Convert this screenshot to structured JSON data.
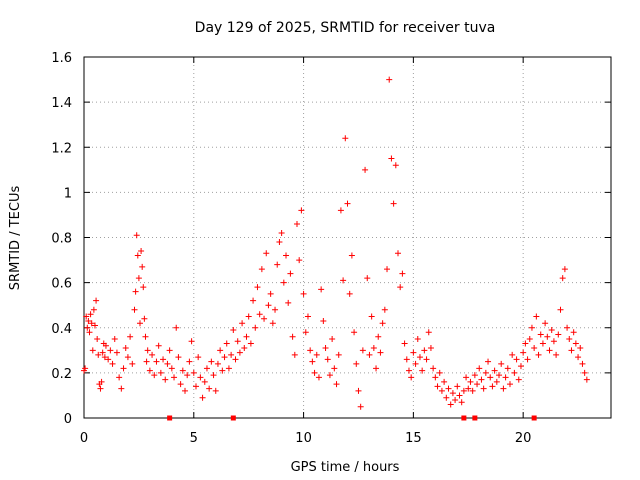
{
  "colors": {
    "series": "#ff0000",
    "grid": "#a0a0a0",
    "axis": "#000000",
    "background": "#ffffff"
  },
  "chart_data": {
    "type": "scatter",
    "title": "Day 129 of 2025, SRMTID for receiver tuva",
    "xlabel": "GPS time / hours",
    "ylabel": "SRMTID / TECUs",
    "xlim": [
      0,
      24
    ],
    "ylim": [
      0,
      1.6
    ],
    "xticks": [
      0,
      5,
      10,
      15,
      20
    ],
    "yticks": [
      0,
      0.2,
      0.4,
      0.6,
      0.8,
      1,
      1.2,
      1.4,
      1.6
    ],
    "xtick_labels": [
      "0",
      "5",
      "10",
      "15",
      "20"
    ],
    "ytick_labels": [
      "0",
      "0.2",
      "0.4",
      "0.6",
      "0.8",
      "1",
      "1.2",
      "1.4",
      "1.6"
    ],
    "grid": true,
    "marker": "+",
    "series": [
      {
        "name": "SRMTID",
        "points": [
          [
            0.0,
            0.21
          ],
          [
            0.05,
            0.22
          ],
          [
            0.1,
            0.45
          ],
          [
            0.15,
            0.4
          ],
          [
            0.2,
            0.43
          ],
          [
            0.25,
            0.38
          ],
          [
            0.3,
            0.46
          ],
          [
            0.35,
            0.42
          ],
          [
            0.4,
            0.3
          ],
          [
            0.45,
            0.48
          ],
          [
            0.5,
            0.41
          ],
          [
            0.55,
            0.52
          ],
          [
            0.6,
            0.35
          ],
          [
            0.65,
            0.28
          ],
          [
            0.7,
            0.15
          ],
          [
            0.75,
            0.13
          ],
          [
            0.8,
            0.16
          ],
          [
            0.85,
            0.29
          ],
          [
            0.9,
            0.33
          ],
          [
            0.95,
            0.27
          ],
          [
            1.0,
            0.32
          ],
          [
            1.1,
            0.26
          ],
          [
            1.2,
            0.3
          ],
          [
            1.3,
            0.24
          ],
          [
            1.4,
            0.35
          ],
          [
            1.5,
            0.29
          ],
          [
            1.6,
            0.18
          ],
          [
            1.7,
            0.13
          ],
          [
            1.8,
            0.22
          ],
          [
            1.9,
            0.31
          ],
          [
            2.0,
            0.27
          ],
          [
            2.1,
            0.36
          ],
          [
            2.2,
            0.24
          ],
          [
            2.3,
            0.48
          ],
          [
            2.35,
            0.56
          ],
          [
            2.4,
            0.81
          ],
          [
            2.45,
            0.72
          ],
          [
            2.5,
            0.62
          ],
          [
            2.55,
            0.42
          ],
          [
            2.6,
            0.74
          ],
          [
            2.65,
            0.67
          ],
          [
            2.7,
            0.58
          ],
          [
            2.75,
            0.44
          ],
          [
            2.8,
            0.36
          ],
          [
            2.85,
            0.25
          ],
          [
            2.9,
            0.3
          ],
          [
            3.0,
            0.21
          ],
          [
            3.1,
            0.28
          ],
          [
            3.2,
            0.19
          ],
          [
            3.3,
            0.25
          ],
          [
            3.4,
            0.32
          ],
          [
            3.5,
            0.2
          ],
          [
            3.6,
            0.26
          ],
          [
            3.7,
            0.17
          ],
          [
            3.8,
            0.24
          ],
          [
            3.9,
            0.3
          ],
          [
            4.0,
            0.22
          ],
          [
            4.1,
            0.18
          ],
          [
            4.2,
            0.4
          ],
          [
            4.3,
            0.27
          ],
          [
            4.4,
            0.15
          ],
          [
            4.5,
            0.21
          ],
          [
            4.6,
            0.12
          ],
          [
            4.7,
            0.19
          ],
          [
            4.8,
            0.25
          ],
          [
            4.9,
            0.34
          ],
          [
            5.0,
            0.2
          ],
          [
            5.1,
            0.14
          ],
          [
            5.2,
            0.27
          ],
          [
            5.3,
            0.18
          ],
          [
            5.4,
            0.09
          ],
          [
            5.5,
            0.16
          ],
          [
            5.6,
            0.22
          ],
          [
            5.7,
            0.13
          ],
          [
            5.8,
            0.25
          ],
          [
            5.9,
            0.19
          ],
          [
            6.0,
            0.12
          ],
          [
            6.1,
            0.24
          ],
          [
            6.2,
            0.3
          ],
          [
            6.3,
            0.21
          ],
          [
            6.4,
            0.27
          ],
          [
            6.5,
            0.33
          ],
          [
            6.6,
            0.22
          ],
          [
            6.7,
            0.28
          ],
          [
            6.8,
            0.39
          ],
          [
            6.9,
            0.26
          ],
          [
            7.0,
            0.34
          ],
          [
            7.1,
            0.29
          ],
          [
            7.2,
            0.42
          ],
          [
            7.3,
            0.31
          ],
          [
            7.4,
            0.36
          ],
          [
            7.5,
            0.45
          ],
          [
            7.6,
            0.33
          ],
          [
            7.7,
            0.52
          ],
          [
            7.8,
            0.4
          ],
          [
            7.9,
            0.58
          ],
          [
            8.0,
            0.46
          ],
          [
            8.1,
            0.66
          ],
          [
            8.2,
            0.44
          ],
          [
            8.3,
            0.73
          ],
          [
            8.4,
            0.5
          ],
          [
            8.5,
            0.55
          ],
          [
            8.6,
            0.42
          ],
          [
            8.7,
            0.48
          ],
          [
            8.8,
            0.68
          ],
          [
            8.9,
            0.78
          ],
          [
            9.0,
            0.82
          ],
          [
            9.1,
            0.6
          ],
          [
            9.2,
            0.72
          ],
          [
            9.3,
            0.51
          ],
          [
            9.4,
            0.64
          ],
          [
            9.5,
            0.36
          ],
          [
            9.6,
            0.28
          ],
          [
            9.7,
            0.86
          ],
          [
            9.8,
            0.7
          ],
          [
            9.9,
            0.92
          ],
          [
            10.0,
            0.55
          ],
          [
            10.1,
            0.38
          ],
          [
            10.2,
            0.45
          ],
          [
            10.3,
            0.3
          ],
          [
            10.4,
            0.25
          ],
          [
            10.5,
            0.2
          ],
          [
            10.6,
            0.28
          ],
          [
            10.7,
            0.18
          ],
          [
            10.8,
            0.57
          ],
          [
            10.9,
            0.43
          ],
          [
            11.0,
            0.31
          ],
          [
            11.1,
            0.26
          ],
          [
            11.2,
            0.19
          ],
          [
            11.3,
            0.35
          ],
          [
            11.4,
            0.22
          ],
          [
            11.5,
            0.15
          ],
          [
            11.6,
            0.28
          ],
          [
            11.7,
            0.92
          ],
          [
            11.8,
            0.61
          ],
          [
            11.9,
            1.24
          ],
          [
            12.0,
            0.95
          ],
          [
            12.1,
            0.55
          ],
          [
            12.2,
            0.72
          ],
          [
            12.3,
            0.38
          ],
          [
            12.4,
            0.24
          ],
          [
            12.5,
            0.12
          ],
          [
            12.6,
            0.05
          ],
          [
            12.7,
            0.3
          ],
          [
            12.8,
            1.1
          ],
          [
            12.9,
            0.62
          ],
          [
            13.0,
            0.28
          ],
          [
            13.1,
            0.45
          ],
          [
            13.2,
            0.31
          ],
          [
            13.3,
            0.22
          ],
          [
            13.4,
            0.36
          ],
          [
            13.5,
            0.29
          ],
          [
            13.6,
            0.42
          ],
          [
            13.7,
            0.48
          ],
          [
            13.8,
            0.66
          ],
          [
            13.9,
            1.5
          ],
          [
            14.0,
            1.15
          ],
          [
            14.1,
            0.95
          ],
          [
            14.2,
            1.12
          ],
          [
            14.3,
            0.73
          ],
          [
            14.4,
            0.58
          ],
          [
            14.5,
            0.64
          ],
          [
            14.6,
            0.33
          ],
          [
            14.7,
            0.26
          ],
          [
            14.8,
            0.21
          ],
          [
            14.9,
            0.18
          ],
          [
            15.0,
            0.29
          ],
          [
            15.1,
            0.24
          ],
          [
            15.2,
            0.35
          ],
          [
            15.3,
            0.27
          ],
          [
            15.4,
            0.21
          ],
          [
            15.5,
            0.3
          ],
          [
            15.6,
            0.26
          ],
          [
            15.7,
            0.38
          ],
          [
            15.8,
            0.31
          ],
          [
            15.9,
            0.22
          ],
          [
            16.0,
            0.18
          ],
          [
            16.1,
            0.14
          ],
          [
            16.2,
            0.2
          ],
          [
            16.3,
            0.12
          ],
          [
            16.4,
            0.16
          ],
          [
            16.5,
            0.09
          ],
          [
            16.6,
            0.13
          ],
          [
            16.7,
            0.06
          ],
          [
            16.8,
            0.11
          ],
          [
            16.9,
            0.08
          ],
          [
            17.0,
            0.14
          ],
          [
            17.1,
            0.1
          ],
          [
            17.2,
            0.07
          ],
          [
            17.3,
            0.12
          ],
          [
            17.4,
            0.18
          ],
          [
            17.5,
            0.13
          ],
          [
            17.6,
            0.16
          ],
          [
            17.7,
            0.12
          ],
          [
            17.8,
            0.19
          ],
          [
            17.9,
            0.15
          ],
          [
            18.0,
            0.22
          ],
          [
            18.1,
            0.17
          ],
          [
            18.2,
            0.13
          ],
          [
            18.3,
            0.2
          ],
          [
            18.4,
            0.25
          ],
          [
            18.5,
            0.18
          ],
          [
            18.6,
            0.14
          ],
          [
            18.7,
            0.21
          ],
          [
            18.8,
            0.16
          ],
          [
            18.9,
            0.19
          ],
          [
            19.0,
            0.24
          ],
          [
            19.1,
            0.13
          ],
          [
            19.2,
            0.18
          ],
          [
            19.3,
            0.22
          ],
          [
            19.4,
            0.15
          ],
          [
            19.5,
            0.28
          ],
          [
            19.6,
            0.2
          ],
          [
            19.7,
            0.26
          ],
          [
            19.8,
            0.17
          ],
          [
            19.9,
            0.23
          ],
          [
            20.0,
            0.29
          ],
          [
            20.1,
            0.33
          ],
          [
            20.2,
            0.26
          ],
          [
            20.3,
            0.35
          ],
          [
            20.4,
            0.4
          ],
          [
            20.5,
            0.31
          ],
          [
            20.6,
            0.45
          ],
          [
            20.7,
            0.28
          ],
          [
            20.8,
            0.37
          ],
          [
            20.9,
            0.33
          ],
          [
            21.0,
            0.42
          ],
          [
            21.1,
            0.36
          ],
          [
            21.2,
            0.3
          ],
          [
            21.3,
            0.39
          ],
          [
            21.4,
            0.34
          ],
          [
            21.5,
            0.28
          ],
          [
            21.6,
            0.37
          ],
          [
            21.7,
            0.48
          ],
          [
            21.8,
            0.62
          ],
          [
            21.9,
            0.66
          ],
          [
            22.0,
            0.4
          ],
          [
            22.1,
            0.35
          ],
          [
            22.2,
            0.3
          ],
          [
            22.3,
            0.38
          ],
          [
            22.4,
            0.33
          ],
          [
            22.5,
            0.27
          ],
          [
            22.6,
            0.31
          ],
          [
            22.7,
            0.24
          ],
          [
            22.8,
            0.2
          ],
          [
            22.9,
            0.17
          ]
        ]
      }
    ],
    "baseline_markers_x": [
      3.9,
      6.8,
      17.3,
      17.8,
      20.5
    ]
  }
}
